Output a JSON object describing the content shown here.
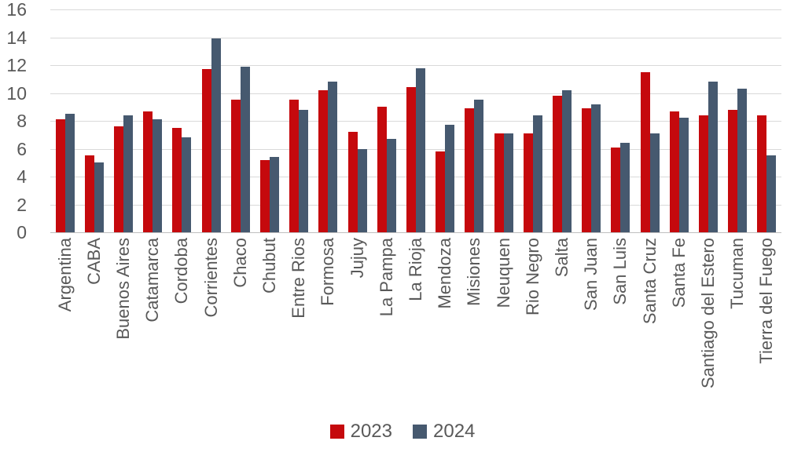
{
  "chart": {
    "background": "#ffffff",
    "text_color": "#595959",
    "grid_color": "#d9d9d9",
    "axis_line_color": "#bfbfbf"
  },
  "chart_data": {
    "type": "bar",
    "title": "",
    "xlabel": "",
    "ylabel": "",
    "ylim": [
      0,
      16
    ],
    "y_ticks": [
      0,
      2,
      4,
      6,
      8,
      10,
      12,
      14,
      16
    ],
    "grid": true,
    "legend_position": "bottom",
    "categories": [
      "Argentina",
      "CABA",
      "Buenos Aires",
      "Catamarca",
      "Cordoba",
      "Corrientes",
      "Chaco",
      "Chubut",
      "Entre Rios",
      "Formosa",
      "Jujuy",
      "La Pampa",
      "La Rioja",
      "Mendoza",
      "Misiones",
      "Neuquen",
      "Rio Negro",
      "Salta",
      "San Juan",
      "San Luis",
      "Santa Cruz",
      "Santa Fe",
      "Santiago del Estero",
      "Tucuman",
      "Tierra del Fuego"
    ],
    "series": [
      {
        "name": "2023",
        "color": "#c5090d",
        "values": [
          8.1,
          5.5,
          7.6,
          8.7,
          7.5,
          11.7,
          9.5,
          5.2,
          9.5,
          10.2,
          7.2,
          9.0,
          10.4,
          5.8,
          8.9,
          7.1,
          7.1,
          9.8,
          8.9,
          6.1,
          11.5,
          8.7,
          8.4,
          8.8,
          8.4
        ]
      },
      {
        "name": "2024",
        "color": "#46596f",
        "values": [
          8.5,
          5.0,
          8.4,
          8.1,
          6.8,
          13.9,
          11.9,
          5.4,
          8.8,
          10.8,
          6.0,
          6.7,
          11.8,
          7.7,
          9.5,
          7.1,
          8.4,
          10.2,
          9.2,
          6.4,
          7.1,
          8.2,
          10.8,
          10.3,
          5.5
        ]
      }
    ]
  }
}
